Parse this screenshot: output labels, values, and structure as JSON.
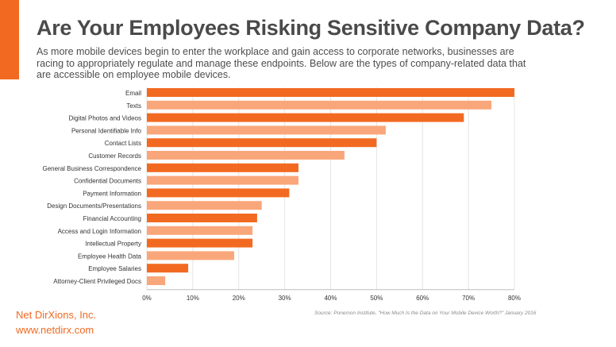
{
  "header": {
    "title": "Are Your Employees Risking Sensitive Company Data?",
    "subtitle": "As more mobile devices begin to enter the workplace and gain access to corporate networks, businesses are racing to appropriately regulate and manage these endpoints. Below are the types of company-related data that are accessible on employee mobile devices."
  },
  "chart_data": {
    "type": "bar",
    "orientation": "horizontal",
    "categories": [
      "Email",
      "Texts",
      "Digital Photos and Videos",
      "Personal Identifiable Info",
      "Contact Lists",
      "Customer Records",
      "General Business Correspondence",
      "Confidential Documents",
      "Payment Information",
      "Design Documents/Presentations",
      "Financial Accounting",
      "Access and Login Information",
      "Intellectual Property",
      "Employee Health Data",
      "Employee Salaries",
      "Attorney-Client Privileged Docs"
    ],
    "values": [
      80,
      75,
      69,
      52,
      50,
      43,
      33,
      33,
      31,
      25,
      24,
      23,
      23,
      19,
      9,
      4
    ],
    "xlim": [
      0,
      80
    ],
    "ticks": [
      "0%",
      "10%",
      "20%",
      "30%",
      "40%",
      "50%",
      "60%",
      "70%",
      "80%"
    ],
    "colors": {
      "primary": "#f26a21",
      "secondary": "#f9a77a"
    },
    "grid": true
  },
  "source": "Source: Ponemon Institute, \"How Much Is the Data on Your Mobile Device Worth?\" January 2016",
  "footer": {
    "company": "Net DirXions, Inc.",
    "url": "www.netdirx.com"
  }
}
